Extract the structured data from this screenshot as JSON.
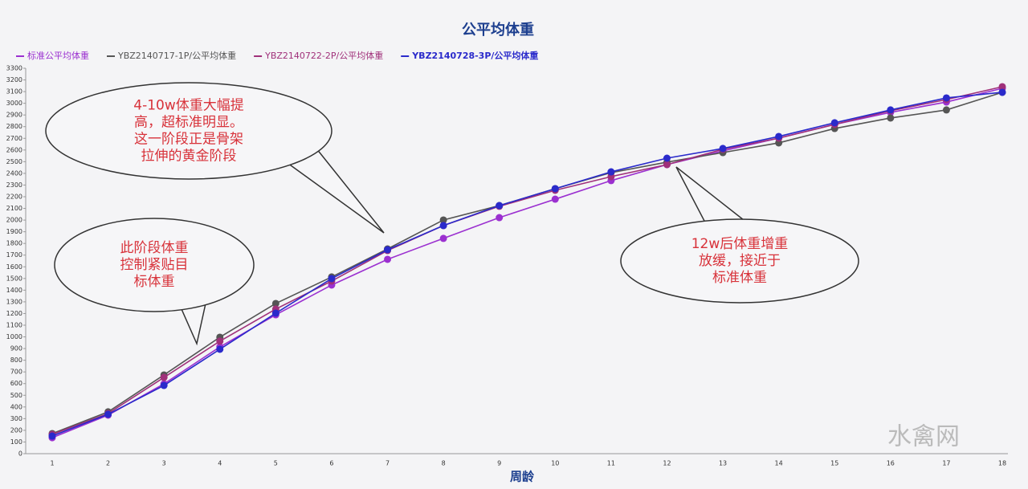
{
  "chart_data": {
    "type": "line",
    "title": "公平均体重",
    "x_label": "周龄",
    "categories": [
      "1",
      "2",
      "3",
      "4",
      "5",
      "6",
      "7",
      "8",
      "9",
      "10",
      "11",
      "12",
      "13",
      "14",
      "15",
      "16",
      "17",
      "18"
    ],
    "series": [
      {
        "name": "标准公平均体重",
        "color": "#9b30d0",
        "values": [
          137,
          330,
          598,
          914,
          1189,
          1444,
          1664,
          1843,
          2021,
          2179,
          2338,
          2475,
          2592,
          2702,
          2819,
          2922,
          3011,
          3128
        ]
      },
      {
        "name": "YBZ2140717-1P/公平均体重",
        "color": "#555555",
        "values": [
          172,
          358,
          674,
          997,
          1286,
          1513,
          1753,
          2001,
          2124,
          2269,
          2406,
          2496,
          2578,
          2661,
          2784,
          2874,
          2943,
          3094
        ]
      },
      {
        "name": "YBZ2140722-2P/公平均体重",
        "color": "#a0307a",
        "values": [
          165,
          344,
          653,
          963,
          1238,
          1478,
          1739,
          1953,
          2118,
          2255,
          2372,
          2475,
          2606,
          2702,
          2819,
          2936,
          3032,
          3142
        ]
      },
      {
        "name": "YBZ2140728-3P/公平均体重",
        "color": "#2a2acb",
        "values": [
          151,
          337,
          584,
          894,
          1203,
          1499,
          1746,
          1953,
          2124,
          2269,
          2413,
          2530,
          2613,
          2716,
          2833,
          2943,
          3046,
          3094
        ]
      }
    ],
    "ylim": [
      0,
      3300
    ],
    "yticks": [
      0,
      100,
      200,
      300,
      400,
      500,
      600,
      700,
      800,
      900,
      1000,
      1100,
      1200,
      1300,
      1400,
      1500,
      1600,
      1700,
      1800,
      1900,
      2000,
      2100,
      2200,
      2300,
      2400,
      2500,
      2600,
      2700,
      2800,
      2900,
      3000,
      3100,
      3200,
      3300
    ],
    "annotations": [
      {
        "lines": [
          "4-10w体重大幅提",
          "高，超标准明显。",
          "这一阶段正是骨架",
          "拉伸的黄金阶段"
        ]
      },
      {
        "lines": [
          "此阶段体重",
          "控制紧贴目",
          "标体重"
        ]
      },
      {
        "lines": [
          "12w后体重增重",
          "放缓，接近于",
          "标准体重"
        ]
      }
    ],
    "watermark": "水禽网"
  }
}
